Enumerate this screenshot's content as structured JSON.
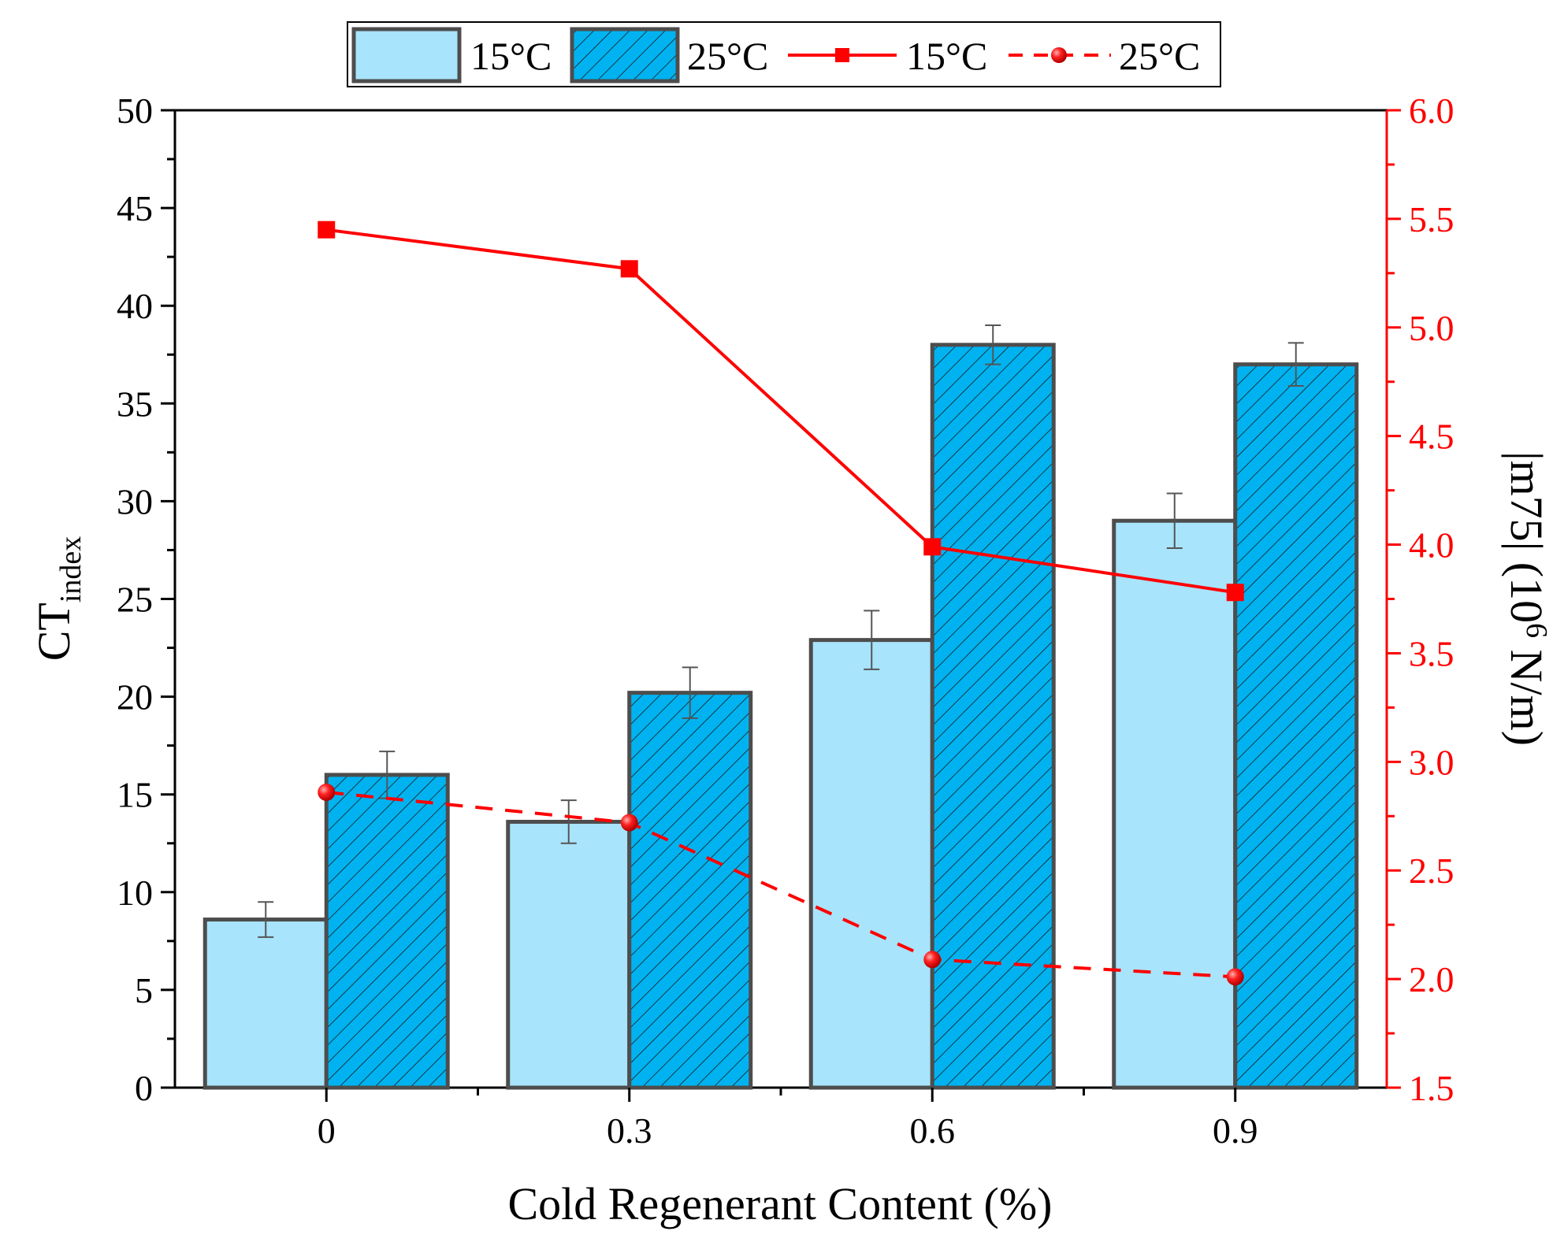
{
  "chart_data": {
    "type": "bar",
    "xlabel": "Cold Regenerant Content (%)",
    "ylabel": "CT",
    "ylabel_subscript": "index",
    "y2label": "|m75| (10",
    "y2label_sup": "6",
    "y2label_tail": " N/m)",
    "categories": [
      "0",
      "0.3",
      "0.6",
      "0.9"
    ],
    "ylim": [
      0,
      50
    ],
    "y2lim": [
      1.5,
      6.0
    ],
    "yticks": [
      "0",
      "5",
      "10",
      "15",
      "20",
      "25",
      "30",
      "35",
      "40",
      "45",
      "50"
    ],
    "y2ticks": [
      "1.5",
      "2.0",
      "2.5",
      "3.0",
      "3.5",
      "4.0",
      "4.5",
      "5.0",
      "5.5",
      "6.0"
    ],
    "bar_series": [
      {
        "name": "15°C",
        "values": [
          8.6,
          13.6,
          22.9,
          29.0
        ],
        "errors": [
          0.9,
          1.1,
          1.5,
          1.4
        ],
        "color": "#a8e4fb",
        "pattern": "solid"
      },
      {
        "name": "25°C",
        "values": [
          16.0,
          20.2,
          38.0,
          37.0
        ],
        "errors": [
          1.2,
          1.3,
          1.0,
          1.1
        ],
        "color": "#00b3f0",
        "pattern": "hatched"
      }
    ],
    "line_series": [
      {
        "name": "15°C",
        "axis": "right",
        "values": [
          5.45,
          5.27,
          3.99,
          3.78
        ],
        "color": "#ff0000",
        "style": "solid",
        "marker": "square"
      },
      {
        "name": "25°C",
        "axis": "right",
        "values": [
          2.86,
          2.72,
          2.09,
          2.01
        ],
        "color": "#ff0000",
        "style": "dashed",
        "marker": "circle"
      }
    ],
    "legend": {
      "placement": "top-center",
      "entries": [
        "15°C",
        "25°C",
        "15°C",
        "25°C"
      ]
    }
  },
  "colors": {
    "axis": "#000000",
    "right_axis": "#ff0000",
    "bar_edge": "#4d4d4d",
    "error_bar": "#555555"
  }
}
